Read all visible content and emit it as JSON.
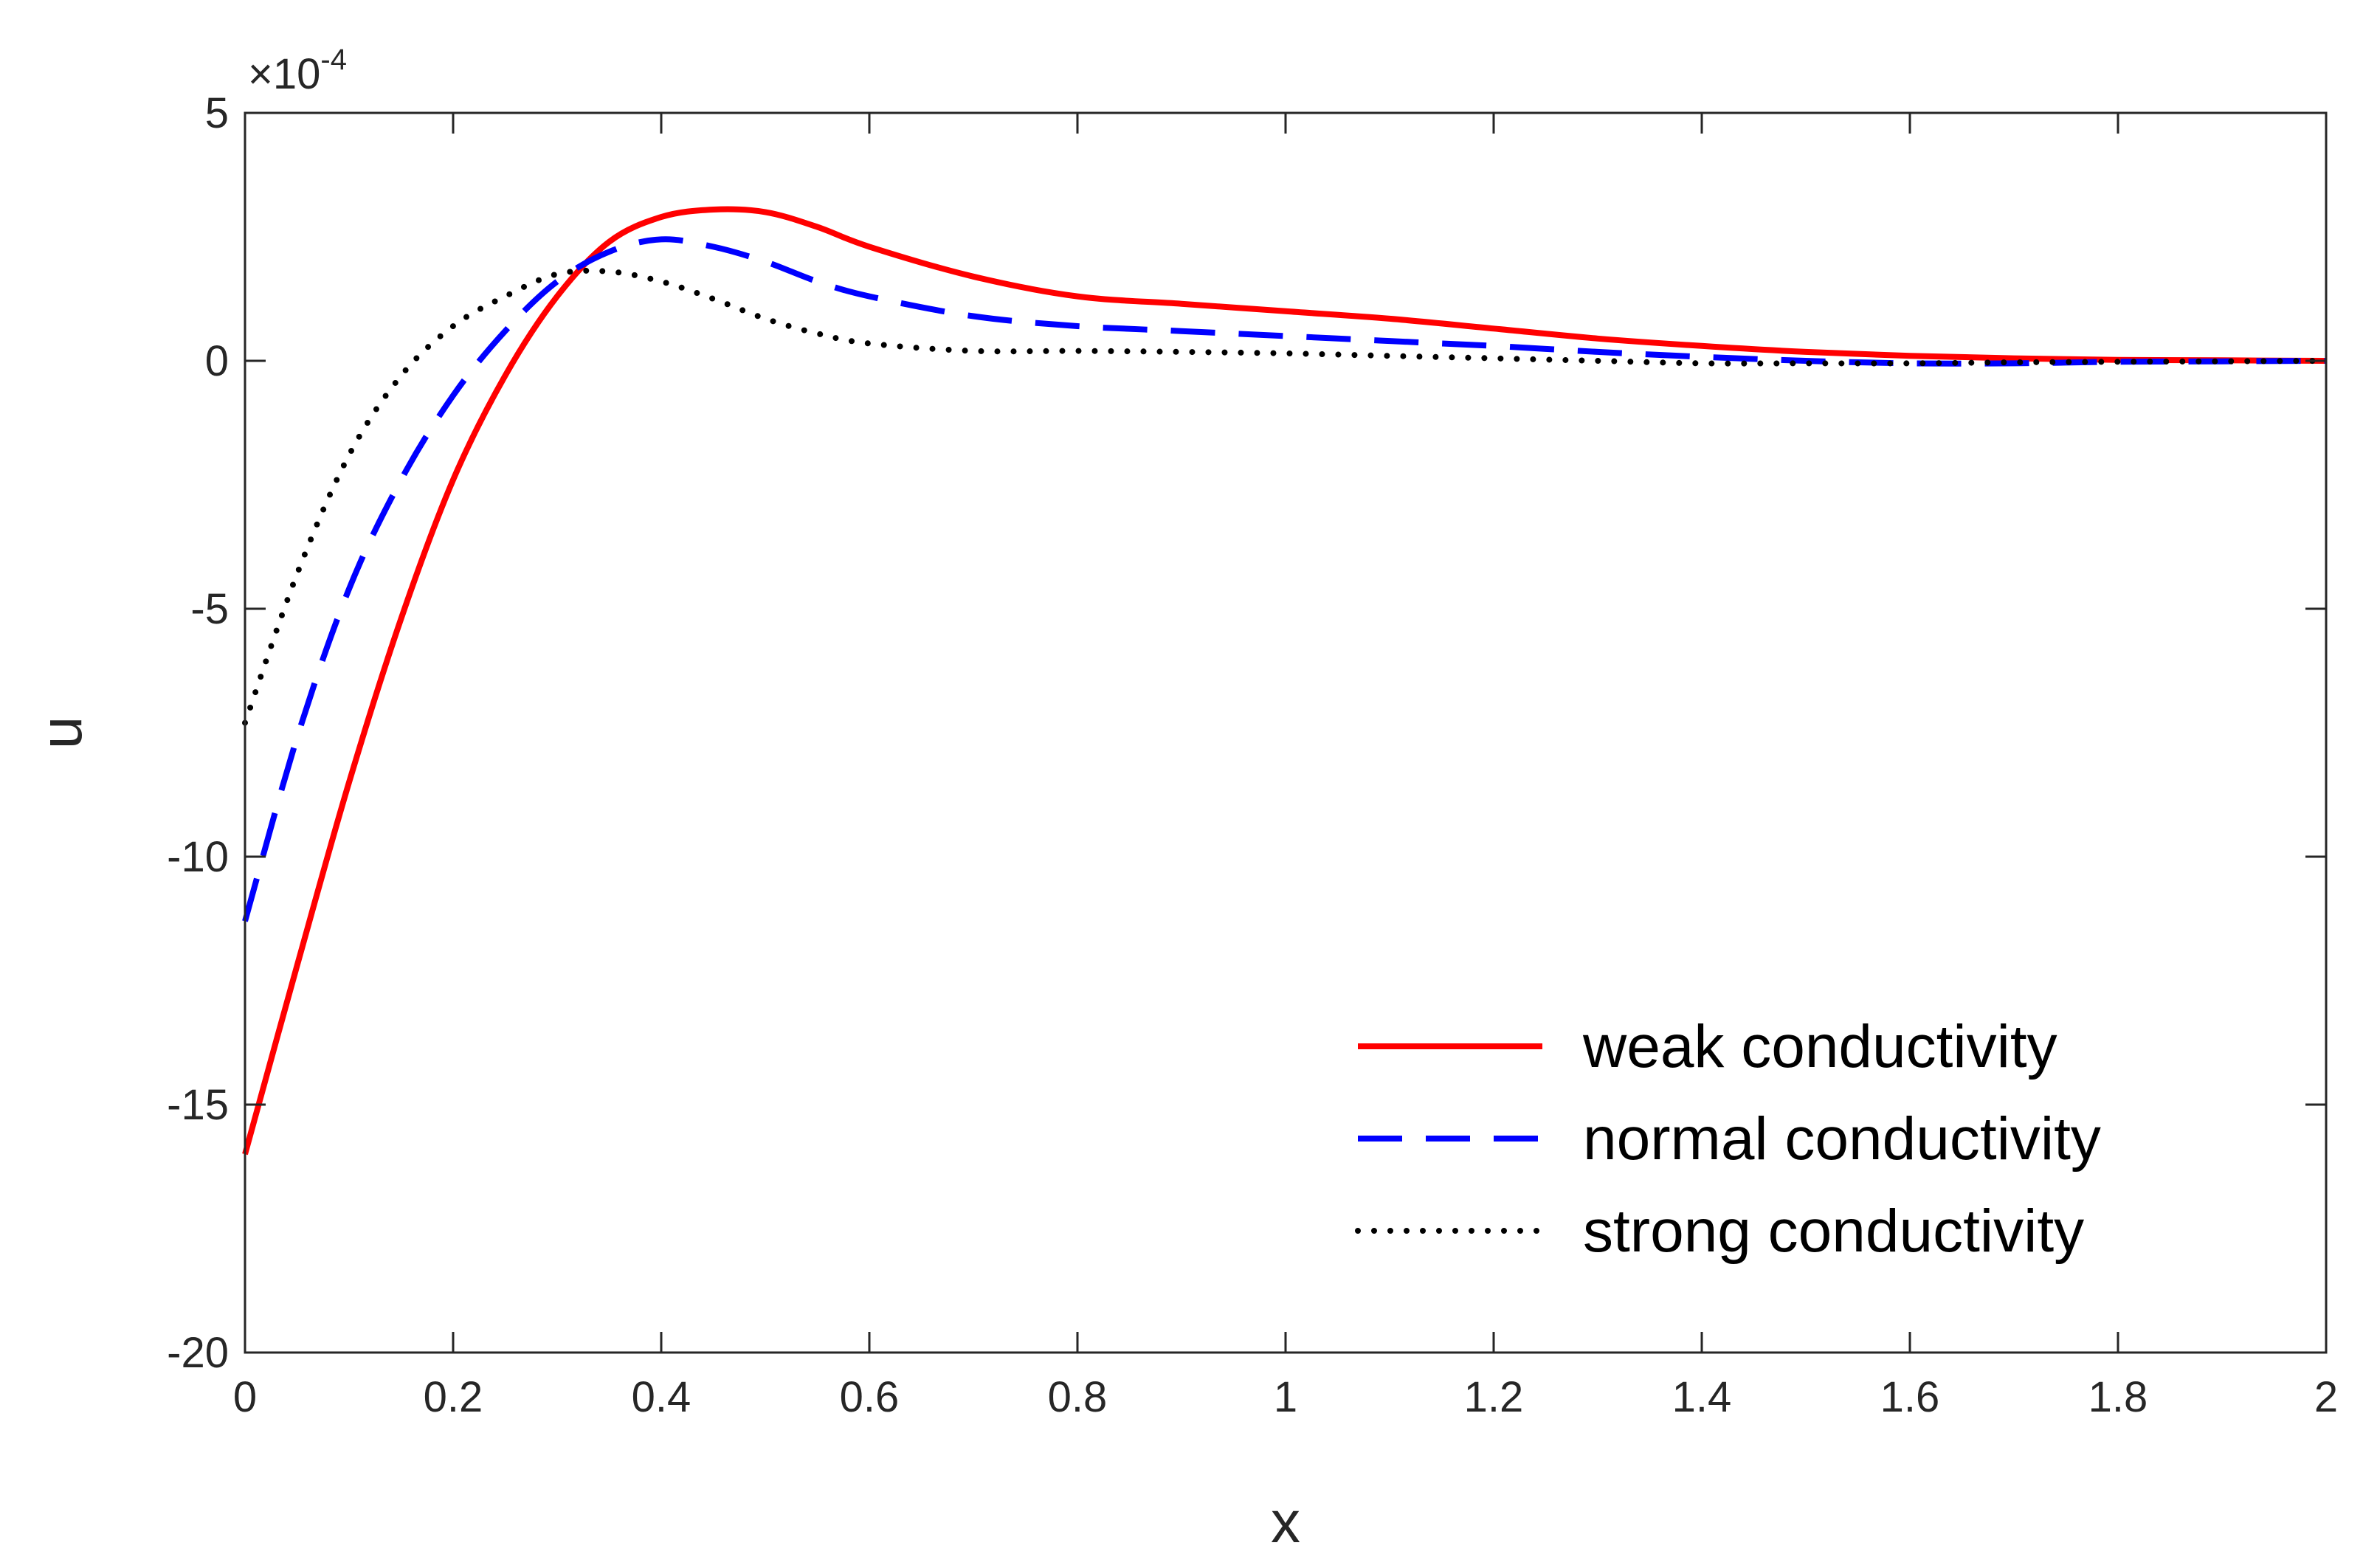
{
  "chart_data": {
    "type": "line",
    "title": "",
    "xlabel": "x",
    "ylabel": "u",
    "xlim": [
      0,
      2
    ],
    "ylim": [
      -20,
      5
    ],
    "y_exponent_times": "×10",
    "y_exponent_power": "-4",
    "xticks": [
      "0",
      "0.2",
      "0.4",
      "0.6",
      "0.8",
      "1",
      "1.2",
      "1.4",
      "1.6",
      "1.8",
      "2"
    ],
    "xtick_values": [
      0,
      0.2,
      0.4,
      0.6,
      0.8,
      1,
      1.2,
      1.4,
      1.6,
      1.8,
      2
    ],
    "yticks": [
      "5",
      "0",
      "-5",
      "-10",
      "-15",
      "-20"
    ],
    "ytick_values": [
      5,
      0,
      -5,
      -10,
      -15,
      -20
    ],
    "grid": false,
    "legend_position": "bottom-right",
    "series": [
      {
        "name": "weak conductivity",
        "color": "#ff0000",
        "style": "solid",
        "x": [
          0,
          0.05,
          0.1,
          0.15,
          0.2,
          0.25,
          0.3,
          0.35,
          0.4,
          0.45,
          0.5,
          0.55,
          0.6,
          0.7,
          0.8,
          0.9,
          1.0,
          1.1,
          1.2,
          1.3,
          1.4,
          1.5,
          1.6,
          1.7,
          1.8,
          1.9,
          2.0
        ],
        "y": [
          -16,
          -12.2,
          -8.5,
          -5.2,
          -2.4,
          -0.3,
          1.3,
          2.4,
          2.9,
          3.05,
          3.0,
          2.7,
          2.3,
          1.7,
          1.3,
          1.15,
          1.0,
          0.85,
          0.65,
          0.45,
          0.3,
          0.18,
          0.1,
          0.05,
          0.02,
          0.01,
          0.0
        ]
      },
      {
        "name": "normal conductivity",
        "color": "#0000ff",
        "style": "dashed",
        "x": [
          0,
          0.05,
          0.1,
          0.15,
          0.2,
          0.25,
          0.3,
          0.35,
          0.4,
          0.45,
          0.5,
          0.55,
          0.6,
          0.7,
          0.8,
          0.9,
          1.0,
          1.1,
          1.2,
          1.3,
          1.4,
          1.5,
          1.6,
          1.7,
          1.8,
          1.9,
          2.0
        ],
        "y": [
          -11.3,
          -7.6,
          -4.6,
          -2.4,
          -0.7,
          0.6,
          1.6,
          2.2,
          2.45,
          2.3,
          2.0,
          1.6,
          1.3,
          0.9,
          0.7,
          0.6,
          0.5,
          0.4,
          0.3,
          0.18,
          0.08,
          0.0,
          -0.05,
          -0.05,
          -0.02,
          -0.01,
          0.0
        ]
      },
      {
        "name": "strong conductivity",
        "color": "#000000",
        "style": "dotted",
        "x": [
          0,
          0.05,
          0.1,
          0.15,
          0.2,
          0.25,
          0.3,
          0.35,
          0.4,
          0.45,
          0.5,
          0.55,
          0.6,
          0.7,
          0.8,
          0.9,
          1.0,
          1.1,
          1.2,
          1.3,
          1.4,
          1.5,
          1.6,
          1.7,
          1.8,
          1.9,
          2.0
        ],
        "y": [
          -7.3,
          -4.3,
          -1.9,
          -0.3,
          0.7,
          1.3,
          1.75,
          1.8,
          1.6,
          1.25,
          0.85,
          0.55,
          0.35,
          0.2,
          0.2,
          0.18,
          0.15,
          0.1,
          0.05,
          0.0,
          -0.05,
          -0.05,
          -0.05,
          -0.03,
          -0.02,
          -0.01,
          0.0
        ]
      }
    ]
  }
}
